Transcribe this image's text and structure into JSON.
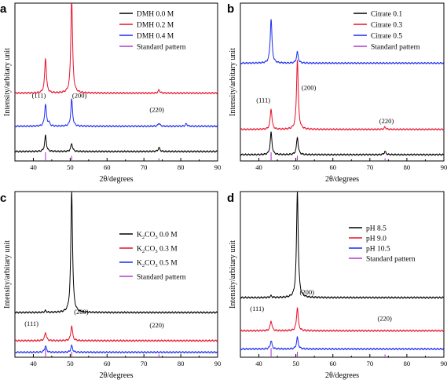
{
  "colors": {
    "black": "#000000",
    "red": "#e8102a",
    "blue": "#1a2cf0",
    "magenta": "#b03cd0"
  },
  "chart_data": [
    {
      "type": "line",
      "panel_label": "a",
      "xlabel": "2θ/degrees",
      "ylabel": "Intensity/arbitary unit",
      "xlim": [
        35,
        90
      ],
      "xticks": [
        40,
        50,
        60,
        70,
        80,
        90
      ],
      "legend_position": "top-right",
      "annotations": [
        {
          "text": "(111)",
          "x": 41.5,
          "level": 0.4
        },
        {
          "text": "(200)",
          "x": 52.5,
          "level": 0.4
        },
        {
          "text": "(220)",
          "x": 73.5,
          "level": 0.31
        }
      ],
      "series": [
        {
          "name": "DMH 0.0 M",
          "color": "#000000",
          "baseline": 0.06,
          "peaks": [
            [
              43.3,
              0.1
            ],
            [
              50.4,
              0.05
            ],
            [
              74.1,
              0.025
            ]
          ]
        },
        {
          "name": "DMH 0.2 M",
          "color": "#e8102a",
          "baseline": 0.43,
          "peaks": [
            [
              43.3,
              0.22
            ],
            [
              50.4,
              0.6
            ],
            [
              74.1,
              0.02
            ]
          ]
        },
        {
          "name": "DMH 0.4 M",
          "color": "#1a2cf0",
          "baseline": 0.22,
          "peaks": [
            [
              43.3,
              0.14
            ],
            [
              44.2,
              0.02
            ],
            [
              50.4,
              0.17
            ],
            [
              74.1,
              0.02
            ],
            [
              81.5,
              0.015
            ]
          ]
        }
      ],
      "standard_pattern": {
        "name": "Standard pattern",
        "color": "#b03cd0",
        "lines": [
          [
            43.3,
            1.0
          ],
          [
            50.4,
            0.6
          ],
          [
            74.1,
            0.3
          ]
        ]
      }
    },
    {
      "type": "line",
      "panel_label": "b",
      "xlabel": "2θ/degrees",
      "ylabel": "Intensity/arbitary unit",
      "xlim": [
        35,
        90
      ],
      "xticks": [
        40,
        50,
        60,
        70,
        80,
        90
      ],
      "legend_position": "top-right",
      "annotations": [
        {
          "text": "(111)",
          "x": 41.2,
          "level": 0.37
        },
        {
          "text": "(200)",
          "x": 53.5,
          "level": 0.45
        },
        {
          "text": "(220)",
          "x": 74.5,
          "level": 0.24
        }
      ],
      "series": [
        {
          "name": "Citrate 0.1",
          "color": "#000000",
          "baseline": 0.04,
          "peaks": [
            [
              43.3,
              0.14
            ],
            [
              50.4,
              0.11
            ],
            [
              74.1,
              0.02
            ]
          ]
        },
        {
          "name": "Citrate 0.3",
          "color": "#e8102a",
          "baseline": 0.2,
          "peaks": [
            [
              43.3,
              0.13
            ],
            [
              50.4,
              0.44
            ],
            [
              74.1,
              0.015
            ]
          ]
        },
        {
          "name": "Citrate 0.5",
          "color": "#1a2cf0",
          "baseline": 0.62,
          "peaks": [
            [
              43.3,
              0.28
            ],
            [
              50.4,
              0.07
            ]
          ]
        }
      ],
      "standard_pattern": {
        "name": "Standard pattern",
        "color": "#b03cd0",
        "lines": [
          [
            43.3,
            1.0
          ],
          [
            50.4,
            0.6
          ],
          [
            74.1,
            0.3
          ]
        ]
      }
    },
    {
      "type": "line",
      "panel_label": "c",
      "xlabel": "2θ/degrees",
      "ylabel": "Intensity/arbitary unit",
      "xlim": [
        35,
        90
      ],
      "xticks": [
        40,
        50,
        60,
        70,
        80,
        90
      ],
      "legend_position": "top-right",
      "annotations": [
        {
          "text": "(111)",
          "x": 39.5,
          "level": 0.19
        },
        {
          "text": "(200)",
          "x": 53.0,
          "level": 0.26
        },
        {
          "text": "(220)",
          "x": 73.5,
          "level": 0.18
        }
      ],
      "series": [
        {
          "name": "K2CO3 0.0 M",
          "label_main": "K",
          "label_sub": "2",
          "label_rest": "CO",
          "label_sub2": "3",
          "label_tail": " 0.0 M",
          "color": "#000000",
          "baseline": 0.27,
          "peaks": [
            [
              43.3,
              0.01
            ],
            [
              50.4,
              0.73
            ]
          ]
        },
        {
          "name": "K2CO3 0.3 M",
          "label_main": "K",
          "label_sub": "2",
          "label_rest": "CO",
          "label_sub2": "3",
          "label_tail": " 0.3 M",
          "color": "#e8102a",
          "baseline": 0.1,
          "peaks": [
            [
              43.3,
              0.05
            ],
            [
              50.4,
              0.09
            ]
          ]
        },
        {
          "name": "K2CO3 0.5 M",
          "label_main": "K",
          "label_sub": "2",
          "label_rest": "CO",
          "label_sub2": "3",
          "label_tail": " 0.5 M",
          "color": "#1a2cf0",
          "baseline": 0.03,
          "peaks": [
            [
              43.3,
              0.04
            ],
            [
              50.4,
              0.04
            ]
          ]
        }
      ],
      "standard_pattern": {
        "name": "Standard pattern",
        "color": "#b03cd0",
        "lines": [
          [
            43.3,
            1.0
          ],
          [
            50.4,
            0.6
          ],
          [
            74.1,
            0.3
          ]
        ]
      }
    },
    {
      "type": "line",
      "panel_label": "d",
      "xlabel": "2θ/degrees",
      "ylabel": "Intensity/arbitary unit",
      "xlim": [
        35,
        90
      ],
      "xticks": [
        40,
        50,
        60,
        70,
        80,
        90
      ],
      "legend_position": "top-right",
      "annotations": [
        {
          "text": "(111)",
          "x": 39.5,
          "level": 0.28
        },
        {
          "text": "(200)",
          "x": 53.0,
          "level": 0.38
        },
        {
          "text": "(220)",
          "x": 74.0,
          "level": 0.22
        }
      ],
      "series": [
        {
          "name": "pH 8.5",
          "color": "#000000",
          "baseline": 0.36,
          "peaks": [
            [
              43.3,
              0.01
            ],
            [
              50.4,
              0.64
            ]
          ]
        },
        {
          "name": "pH 9.0",
          "color": "#e8102a",
          "baseline": 0.16,
          "peaks": [
            [
              43.3,
              0.06
            ],
            [
              50.4,
              0.14
            ]
          ]
        },
        {
          "name": "pH 10.5",
          "color": "#1a2cf0",
          "baseline": 0.05,
          "peaks": [
            [
              43.3,
              0.05
            ],
            [
              50.4,
              0.07
            ]
          ]
        }
      ],
      "standard_pattern": {
        "name": "Standard pattern",
        "color": "#b03cd0",
        "lines": [
          [
            43.3,
            1.0
          ],
          [
            50.4,
            0.6
          ],
          [
            74.1,
            0.3
          ]
        ]
      }
    }
  ]
}
